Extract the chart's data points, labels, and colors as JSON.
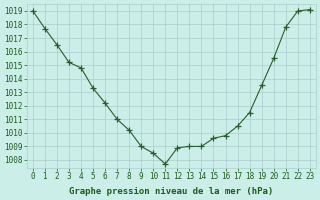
{
  "x": [
    0,
    1,
    2,
    3,
    4,
    5,
    6,
    7,
    8,
    9,
    10,
    11,
    12,
    13,
    14,
    15,
    16,
    17,
    18,
    19,
    20,
    21,
    22,
    23
  ],
  "y": [
    1019.0,
    1017.7,
    1016.5,
    1015.2,
    1014.8,
    1013.3,
    1012.2,
    1011.0,
    1010.2,
    1009.0,
    1008.5,
    1007.7,
    1008.9,
    1009.0,
    1009.0,
    1009.6,
    1009.8,
    1010.5,
    1011.5,
    1013.5,
    1015.5,
    1017.8,
    1019.0,
    1019.1
  ],
  "line_color": "#2a5e2a",
  "marker_color": "#2a5e2a",
  "bg_color": "#cceee8",
  "grid_color": "#aacccc",
  "xlabel": "Graphe pression niveau de la mer (hPa)",
  "ylim_min": 1007.4,
  "ylim_max": 1019.5,
  "xlim_min": -0.5,
  "xlim_max": 23.5,
  "yticks": [
    1008,
    1009,
    1010,
    1011,
    1012,
    1013,
    1014,
    1015,
    1016,
    1017,
    1018,
    1019
  ],
  "xticks": [
    0,
    1,
    2,
    3,
    4,
    5,
    6,
    7,
    8,
    9,
    10,
    11,
    12,
    13,
    14,
    15,
    16,
    17,
    18,
    19,
    20,
    21,
    22,
    23
  ],
  "tick_fontsize": 5.5,
  "label_fontsize": 6.5,
  "label_color": "#1a5e1a",
  "tick_color": "#1a5e1a"
}
